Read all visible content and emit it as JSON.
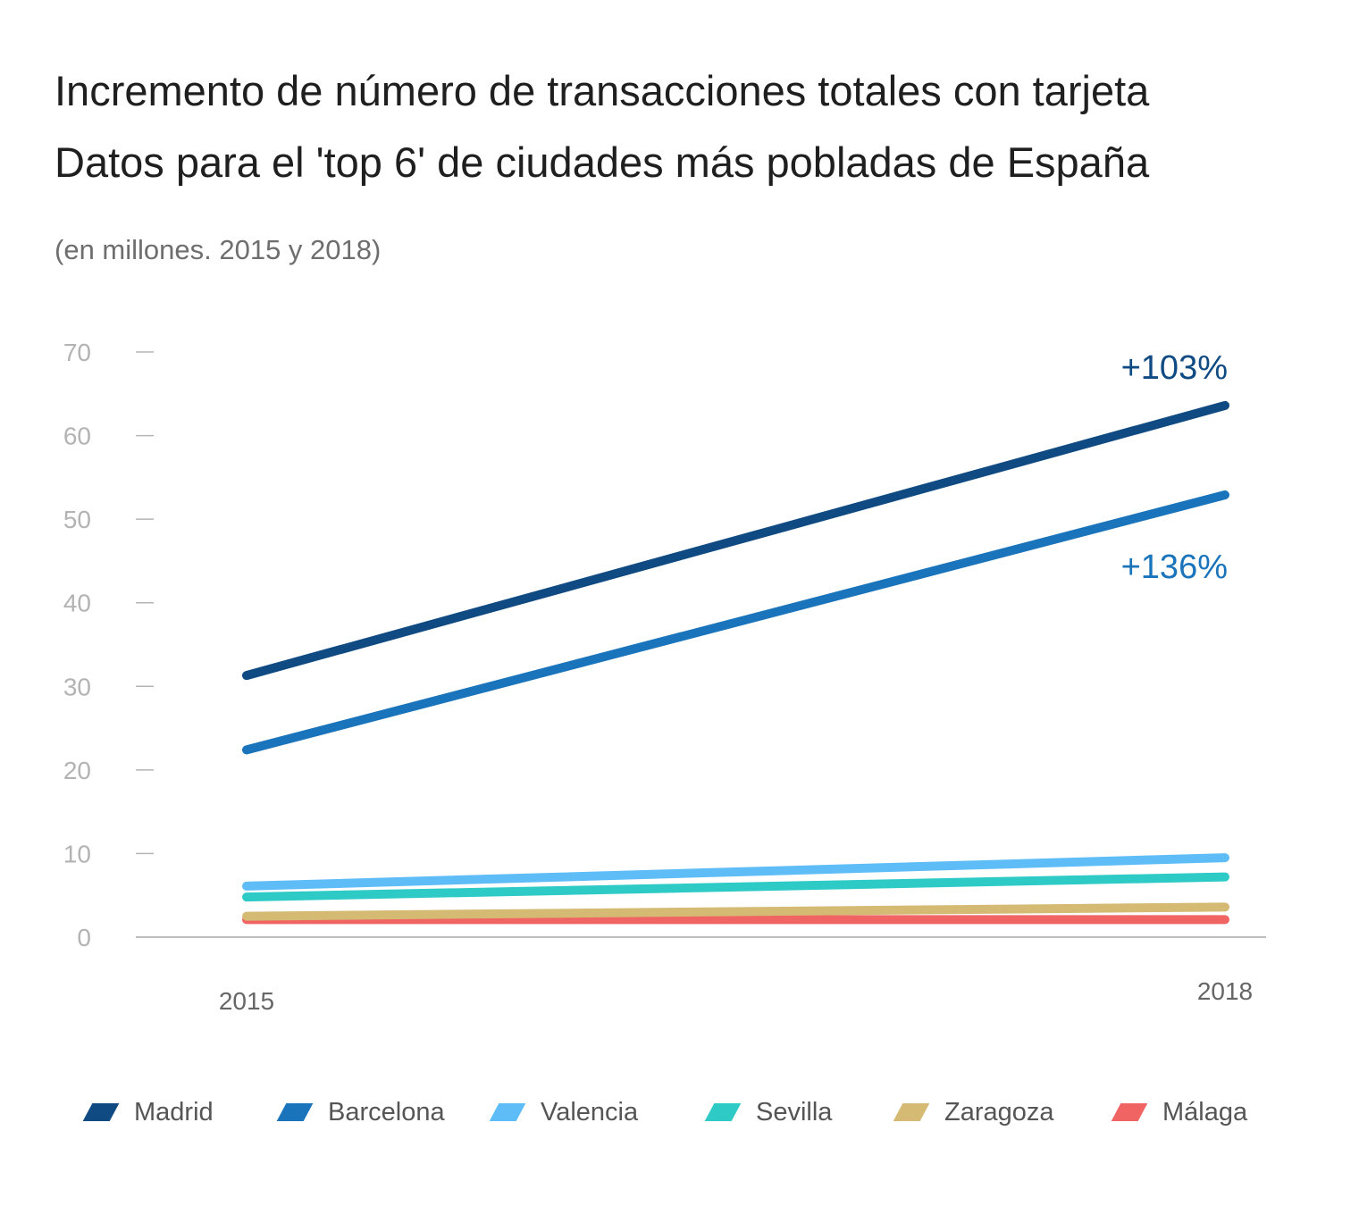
{
  "title_line1": "Incremento de número de transacciones totales con tarjeta",
  "title_line2": "Datos para el 'top 6' de ciudades más pobladas de España",
  "unit_note": "(en millones. 2015 y 2018)",
  "chart_data": {
    "type": "line",
    "title": "Incremento de número de transacciones totales con tarjeta",
    "subtitle": "Datos para el 'top 6' de ciudades más pobladas de España",
    "x": [
      "2015",
      "2018"
    ],
    "ylim": [
      0,
      70
    ],
    "yticks": [
      0,
      10,
      20,
      30,
      40,
      50,
      60,
      70
    ],
    "grid": false,
    "legend_position": "bottom",
    "series": [
      {
        "name": "Madrid",
        "values": [
          31.3,
          63.6
        ],
        "color": "#0f4a82",
        "annotation": "+103%"
      },
      {
        "name": "Barcelona",
        "values": [
          22.4,
          52.9
        ],
        "color": "#1a74bb",
        "annotation": "+136%"
      },
      {
        "name": "Valencia",
        "values": [
          6.1,
          9.5
        ],
        "color": "#5ebcf7"
      },
      {
        "name": "Sevilla",
        "values": [
          4.8,
          7.2
        ],
        "color": "#2ecac6"
      },
      {
        "name": "Zaragoza",
        "values": [
          2.5,
          3.6
        ],
        "color": "#d5ba74"
      },
      {
        "name": "Málaga",
        "values": [
          2.1,
          2.1
        ],
        "color": "#f06464"
      }
    ]
  }
}
